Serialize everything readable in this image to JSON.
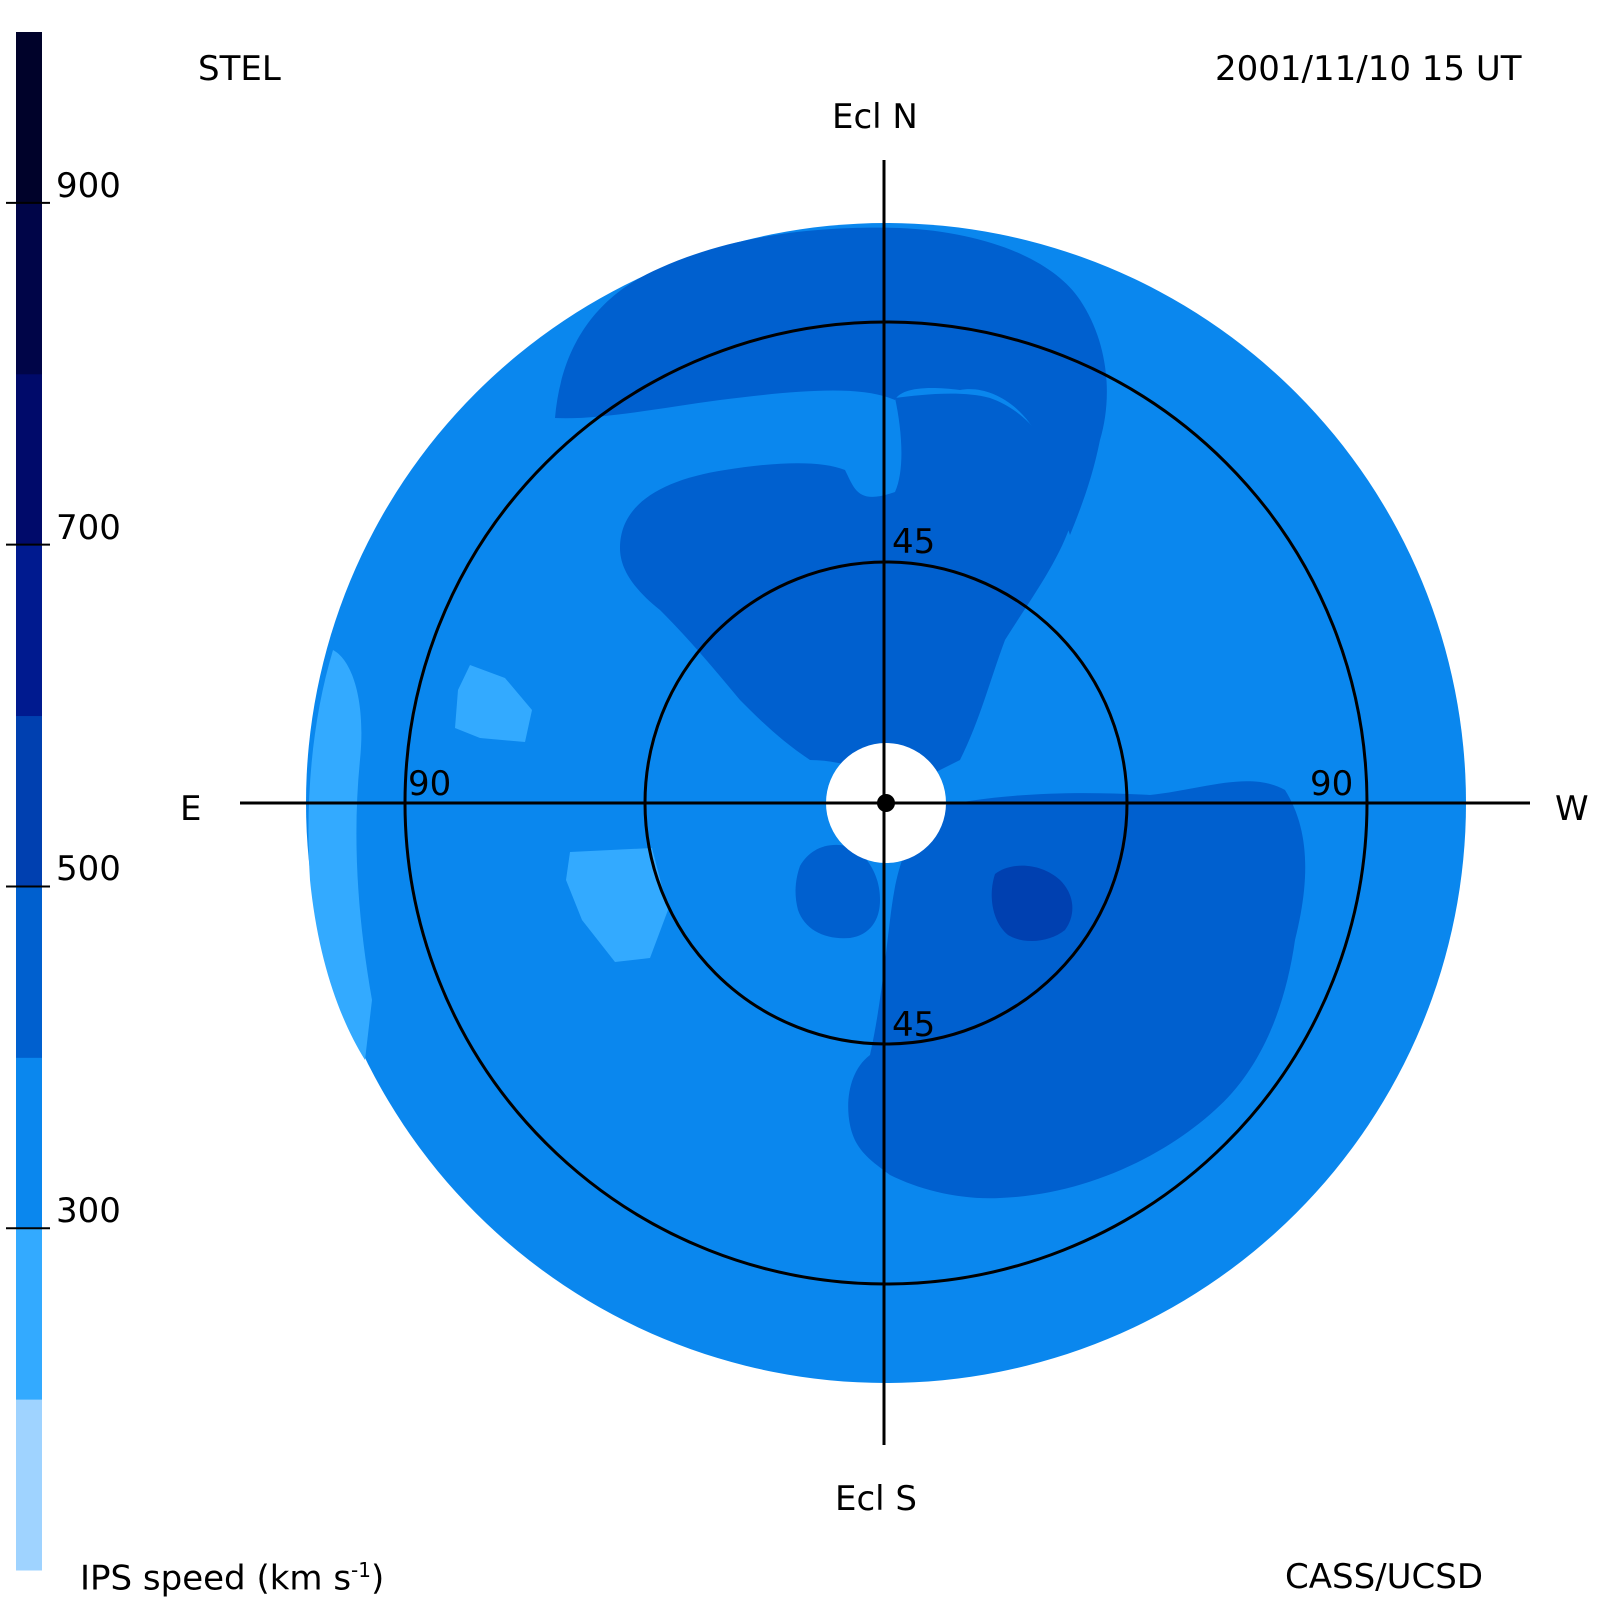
{
  "header": {
    "left": "STEL",
    "right": "2001/11/10 15 UT"
  },
  "footer": {
    "left_prefix": "IPS speed (km s",
    "left_sup": "-1",
    "left_suffix": ")",
    "right": "CASS/UCSD"
  },
  "directions": {
    "north": "Ecl N",
    "south": "Ecl S",
    "east": "E",
    "west": "W"
  },
  "chart_data": {
    "type": "heatmap",
    "projection": "polar sky map (elongation)",
    "colorbar": {
      "label": "IPS speed (km s-1)",
      "ticks": [
        300,
        500,
        700,
        900
      ],
      "range": [
        100,
        1000
      ],
      "bins": [
        {
          "from": 100,
          "to": 200,
          "color": "#9fd3ff"
        },
        {
          "from": 200,
          "to": 300,
          "color": "#33aaff"
        },
        {
          "from": 300,
          "to": 400,
          "color": "#0a87ee"
        },
        {
          "from": 400,
          "to": 500,
          "color": "#0060cf"
        },
        {
          "from": 500,
          "to": 600,
          "color": "#0040b0"
        },
        {
          "from": 600,
          "to": 700,
          "color": "#001a8f"
        },
        {
          "from": 700,
          "to": 800,
          "color": "#000a6a"
        },
        {
          "from": 800,
          "to": 900,
          "color": "#000548"
        },
        {
          "from": 900,
          "to": 1000,
          "color": "#00022a"
        }
      ]
    },
    "rings": [
      {
        "elongation": 45,
        "labels": [
          "45",
          "45"
        ]
      },
      {
        "elongation": 90,
        "labels": [
          "90",
          "90"
        ]
      }
    ],
    "max_elongation": 110,
    "background_speed": 350,
    "regions": [
      {
        "description": "outer annulus",
        "speed": 350
      },
      {
        "description": "northern high-speed arc",
        "speed": 450
      },
      {
        "description": "northern stream",
        "speed": 450
      },
      {
        "description": "southwestern high-speed region",
        "speed": 450
      },
      {
        "description": "southwestern core",
        "speed": 550
      },
      {
        "description": "eastern slow patches",
        "speed": 250
      },
      {
        "description": "south-center small patch",
        "speed": 450
      }
    ]
  }
}
